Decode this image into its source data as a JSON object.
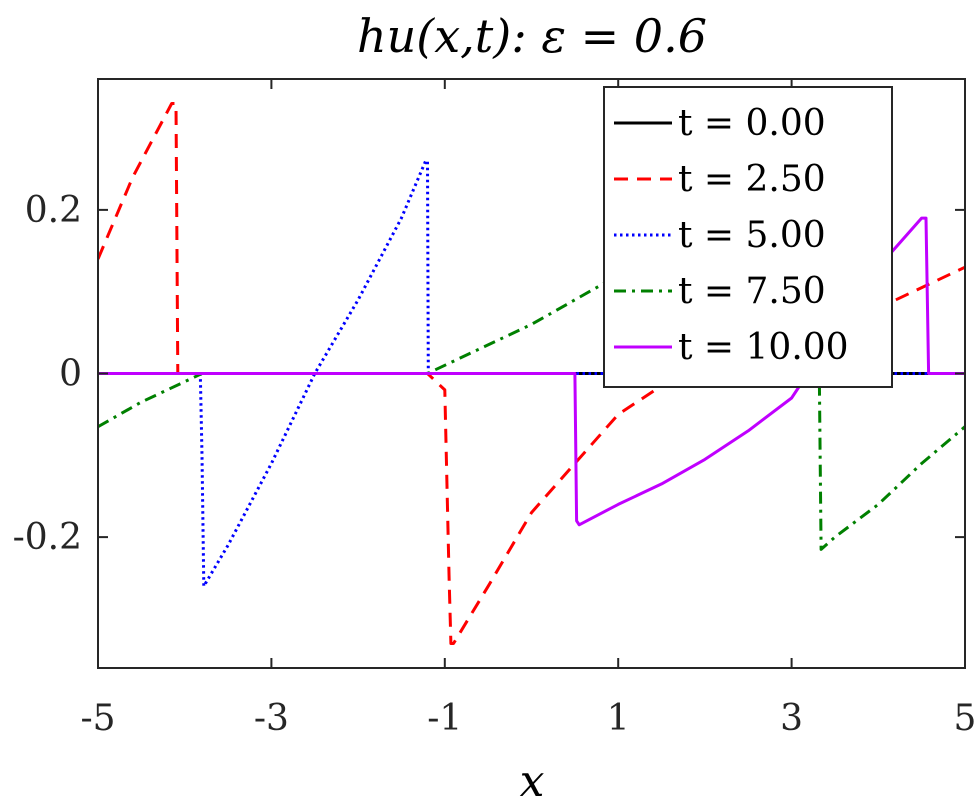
{
  "chart_data": {
    "type": "line",
    "title": "hu(x,t): ε = 0.6",
    "xlabel": "x",
    "ylabel": "",
    "xlim": [
      -5,
      5
    ],
    "ylim": [
      -0.36,
      0.36
    ],
    "grid": false,
    "legend_position": "top-right",
    "xticks": [
      -5,
      -3,
      -1,
      1,
      3,
      5
    ],
    "xtick_labels": [
      "-5",
      "-3",
      "-1",
      "1",
      "3",
      "5"
    ],
    "yticks": [
      -0.2,
      0,
      0.2
    ],
    "ytick_labels": [
      "-0.2",
      "0",
      "0.2"
    ],
    "series": [
      {
        "name": "t = 0.00",
        "color": "#000000",
        "dash": "solid",
        "x": [
          -5,
          5
        ],
        "y": [
          0,
          0
        ]
      },
      {
        "name": "t = 2.50",
        "color": "#ff0000",
        "dash": "dashed",
        "x": [
          -5,
          -4.6,
          -4.15,
          -4.1,
          -4.08,
          -3,
          -2,
          -1.2,
          -1.0,
          -0.95,
          -0.93,
          -0.9,
          -0.5,
          0,
          1,
          2,
          3,
          4,
          5
        ],
        "y": [
          0.14,
          0.24,
          0.33,
          0.33,
          0.0,
          0.0,
          0.0,
          0.0,
          -0.02,
          -0.25,
          -0.33,
          -0.33,
          -0.26,
          -0.17,
          -0.05,
          0.02,
          0.04,
          0.08,
          0.13
        ]
      },
      {
        "name": "t = 5.00",
        "color": "#0000ff",
        "dash": "dotted",
        "x": [
          -5,
          -4,
          -3.82,
          -3.8,
          -3.78,
          -3.5,
          -3,
          -2.5,
          -2,
          -1.5,
          -1.22,
          -1.2,
          -1.19,
          0,
          1,
          2,
          3,
          4,
          5
        ],
        "y": [
          0,
          0,
          0,
          -0.1,
          -0.26,
          -0.21,
          -0.11,
          0,
          0.09,
          0.19,
          0.26,
          0.26,
          0,
          0,
          0,
          0,
          0,
          0,
          0
        ]
      },
      {
        "name": "t = 7.50",
        "color": "#008000",
        "dash": "dashdot",
        "x": [
          -5,
          -4.5,
          -4,
          -3.8,
          -3,
          -2,
          -1.2,
          -1,
          0,
          1,
          1.5,
          2,
          2.5,
          3.3,
          3.32,
          3.34,
          3.5,
          4,
          4.5,
          5
        ],
        "y": [
          -0.065,
          -0.035,
          -0.01,
          0,
          0,
          0,
          0,
          0.01,
          0.06,
          0.12,
          0.155,
          0.19,
          0.22,
          0.25,
          0.0,
          -0.215,
          -0.2,
          -0.16,
          -0.11,
          -0.065
        ]
      },
      {
        "name": "t = 10.00",
        "color": "#c000ff",
        "dash": "solid",
        "x": [
          -5,
          -2,
          0,
          0.5,
          0.52,
          0.55,
          1,
          1.5,
          2,
          2.5,
          3,
          3.5,
          4,
          4.5,
          4.55,
          4.58,
          5
        ],
        "y": [
          0,
          0,
          0,
          0,
          -0.18,
          -0.185,
          -0.16,
          -0.135,
          -0.105,
          -0.07,
          -0.03,
          0.05,
          0.13,
          0.19,
          0.19,
          0,
          0
        ]
      }
    ]
  }
}
